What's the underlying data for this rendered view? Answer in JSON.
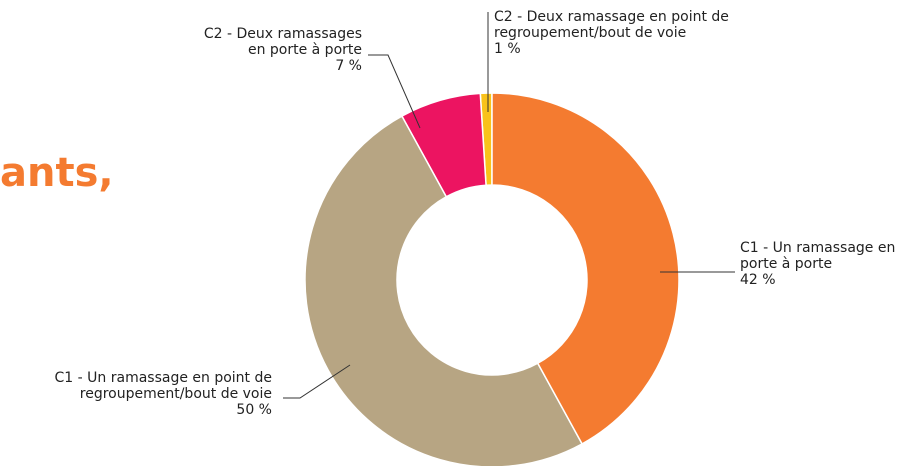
{
  "partial_title": "ants,",
  "chart_data": {
    "type": "donut",
    "categories": [
      "C1 - Un ramassage en porte à porte",
      "C1 - Un ramassage en point de regroupement/bout de voie",
      "C2 - Deux ramassages en porte à porte",
      "C2 - Deux ramassage en point de regroupement/bout de voie"
    ],
    "values": [
      42,
      50,
      7,
      1
    ],
    "value_labels": [
      "42 %",
      "50 %",
      "7 %",
      "1 %"
    ],
    "colors": [
      "#f47b30",
      "#b7a583",
      "#ec1461",
      "#f9c21a"
    ]
  }
}
